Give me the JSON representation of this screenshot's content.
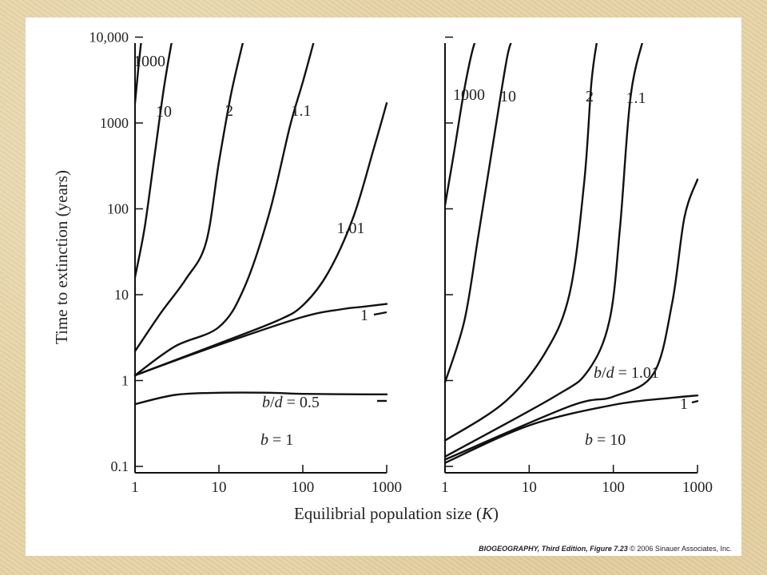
{
  "chart_data": [
    {
      "type": "line",
      "panel": "left",
      "annotation": "b = 1",
      "xlabel": "Equilibrial population size (K)",
      "ylabel": "Time to extinction (years)",
      "x_scale": "log",
      "y_scale": "log",
      "xlim": [
        1,
        1000
      ],
      "ylim": [
        0.1,
        10000
      ],
      "x_ticks": [
        "1",
        "10",
        "100",
        "1000"
      ],
      "y_ticks": [
        "0.1",
        "1",
        "10",
        "100",
        "1000",
        "10,000"
      ],
      "grid": false,
      "series": [
        {
          "name": "1000",
          "x": [
            1,
            1.1,
            1.2
          ],
          "y": [
            1700,
            4500,
            10000
          ]
        },
        {
          "name": "10",
          "x": [
            1,
            1.3,
            1.7,
            2.2,
            2.8
          ],
          "y": [
            16,
            60,
            400,
            2500,
            10000
          ]
        },
        {
          "name": "2",
          "x": [
            1,
            2,
            4,
            7,
            10,
            14,
            20
          ],
          "y": [
            2.2,
            6,
            15,
            40,
            350,
            2200,
            10000
          ]
        },
        {
          "name": "1.1",
          "x": [
            1,
            3,
            10,
            20,
            40,
            70,
            100,
            140
          ],
          "y": [
            1.15,
            2.5,
            4.2,
            12,
            90,
            900,
            3000,
            10000
          ]
        },
        {
          "name": "1.01",
          "x": [
            1,
            10,
            50,
            100,
            200,
            400,
            700,
            1000
          ],
          "y": [
            1.15,
            2.7,
            5,
            7.5,
            18,
            80,
            500,
            1700
          ]
        },
        {
          "name": "1",
          "x": [
            1,
            10,
            100,
            300,
            500,
            1000
          ],
          "y": [
            1.15,
            2.6,
            5.5,
            6.8,
            7.2,
            7.8
          ]
        },
        {
          "name": "0.5",
          "x": [
            1,
            3,
            10,
            40,
            100,
            600,
            1000
          ],
          "y": [
            0.53,
            0.68,
            0.72,
            0.72,
            0.7,
            0.69,
            0.69
          ]
        }
      ],
      "curve_labels": [
        "1000",
        "10",
        "2",
        "1.1",
        "1.01",
        "1",
        "b/d = 0.5"
      ]
    },
    {
      "type": "line",
      "panel": "right",
      "annotation": "b = 10",
      "x_scale": "log",
      "y_scale": "log",
      "xlim": [
        1,
        1000
      ],
      "ylim": [
        0.1,
        10000
      ],
      "x_ticks": [
        "1",
        "10",
        "100",
        "1000"
      ],
      "grid": false,
      "series": [
        {
          "name": "1000",
          "x": [
            1,
            1.3,
            1.7,
            2.2,
            2.6
          ],
          "y": [
            110,
            500,
            2500,
            8000,
            10000
          ]
        },
        {
          "name": "10",
          "x": [
            1,
            1.7,
            2.5,
            4,
            5.5,
            6.5
          ],
          "y": [
            0.95,
            5,
            50,
            900,
            6000,
            10000
          ]
        },
        {
          "name": "2",
          "x": [
            1,
            5,
            15,
            30,
            45,
            55,
            65
          ],
          "y": [
            0.2,
            0.55,
            2,
            10,
            200,
            3000,
            10000
          ]
        },
        {
          "name": "1.1",
          "x": [
            1,
            20,
            50,
            90,
            120,
            160,
            230
          ],
          "y": [
            0.13,
            0.65,
            1.3,
            5,
            60,
            2000,
            10000
          ]
        },
        {
          "name": "1.01",
          "x": [
            1,
            30,
            100,
            300,
            500,
            700,
            1000
          ],
          "y": [
            0.12,
            0.5,
            0.65,
            1.2,
            8,
            80,
            220
          ]
        },
        {
          "name": "1",
          "x": [
            1,
            10,
            100,
            500,
            1000
          ],
          "y": [
            0.11,
            0.3,
            0.52,
            0.63,
            0.67
          ]
        }
      ],
      "curve_labels": [
        "1000",
        "10",
        "2",
        "1.1",
        "b/d = 1.01",
        "1"
      ]
    }
  ],
  "credit": {
    "title": "BIOGEOGRAPHY, Third Edition, Figure 7.23",
    "rest": " © 2006 Sinauer Associates, Inc."
  }
}
